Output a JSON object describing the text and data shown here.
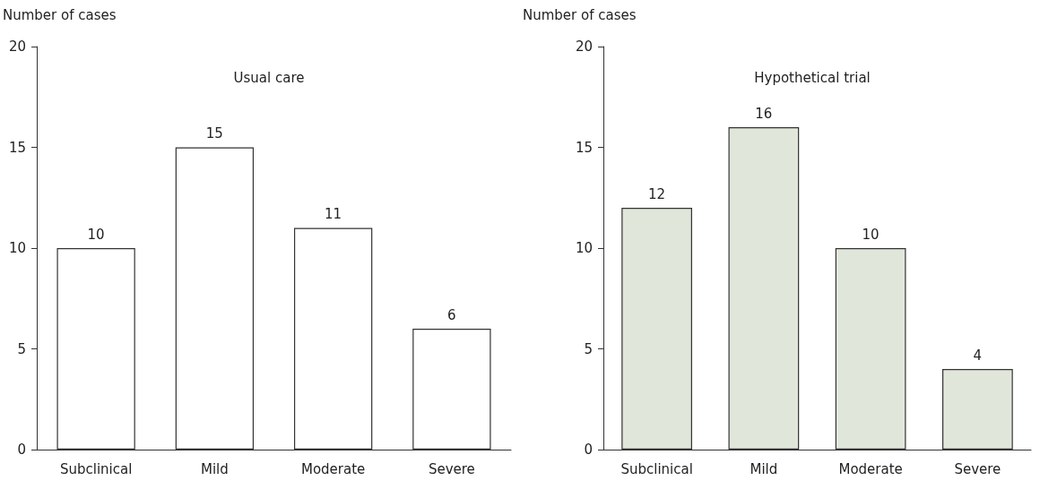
{
  "chart_data": [
    {
      "type": "bar",
      "title": "Usual care",
      "ylabel": "Number of cases",
      "categories": [
        "Subclinical",
        "Mild",
        "Moderate",
        "Severe"
      ],
      "values": [
        10,
        15,
        11,
        6
      ],
      "color": "#ffffff",
      "ylim": [
        0,
        20
      ],
      "yticks": [
        0,
        5,
        10,
        15,
        20
      ],
      "data_labels": true,
      "grid": false
    },
    {
      "type": "bar",
      "title": "Hypothetical trial",
      "ylabel": "Number of cases",
      "categories": [
        "Subclinical",
        "Mild",
        "Moderate",
        "Severe"
      ],
      "values": [
        12,
        16,
        10,
        4
      ],
      "color": "#e1e6da",
      "ylim": [
        0,
        20
      ],
      "yticks": [
        0,
        5,
        10,
        15,
        20
      ],
      "data_labels": true,
      "grid": false
    }
  ]
}
